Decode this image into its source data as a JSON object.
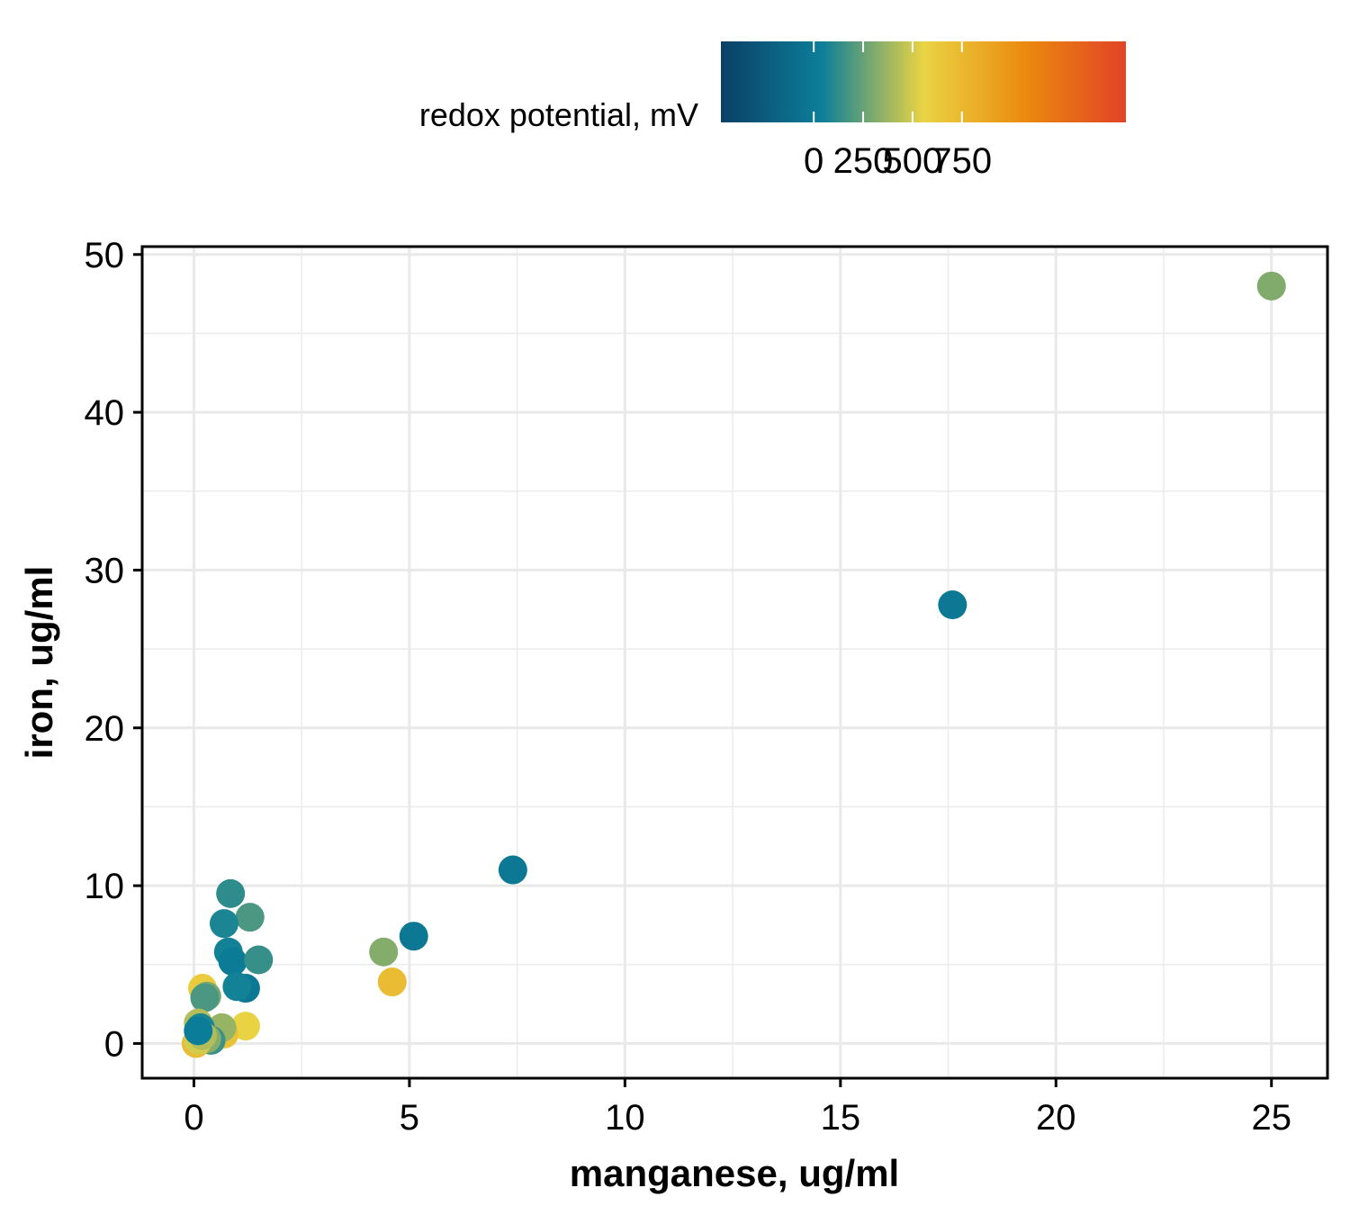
{
  "chart_data": {
    "type": "scatter",
    "xlabel": "manganese, ug/ml",
    "ylabel": "iron, ug/ml",
    "xlim": [
      -1.2,
      26.3
    ],
    "ylim": [
      -2.2,
      50.5
    ],
    "x_ticks": [
      0,
      5,
      10,
      15,
      20,
      25
    ],
    "y_ticks": [
      0,
      10,
      20,
      30,
      40,
      50
    ],
    "grid": true,
    "legend": {
      "title": "redox potential, mV",
      "placement": "top",
      "type": "colorbar",
      "range": [
        -470,
        1580
      ],
      "ticks": [
        0,
        250,
        500,
        750
      ],
      "colors": [
        "#0b3f66",
        "#0c7f99",
        "#ead444",
        "#eb8a0e",
        "#e14326"
      ]
    },
    "points": [
      {
        "x": 25.0,
        "y": 48.0,
        "c": 310
      },
      {
        "x": 17.6,
        "y": 27.8,
        "c": -10
      },
      {
        "x": 7.4,
        "y": 11.0,
        "c": -10
      },
      {
        "x": 5.1,
        "y": 6.8,
        "c": -10
      },
      {
        "x": 4.4,
        "y": 5.8,
        "c": 320
      },
      {
        "x": 4.6,
        "y": 3.9,
        "c": 720
      },
      {
        "x": 0.85,
        "y": 9.5,
        "c": 120
      },
      {
        "x": 1.3,
        "y": 8.0,
        "c": 190
      },
      {
        "x": 0.7,
        "y": 7.6,
        "c": 80
      },
      {
        "x": 0.8,
        "y": 5.8,
        "c": 60
      },
      {
        "x": 0.9,
        "y": 5.2,
        "c": 10
      },
      {
        "x": 1.5,
        "y": 5.3,
        "c": 140
      },
      {
        "x": 1.2,
        "y": 3.5,
        "c": -10
      },
      {
        "x": 1.0,
        "y": 3.6,
        "c": 60
      },
      {
        "x": 0.2,
        "y": 3.5,
        "c": 620
      },
      {
        "x": 0.3,
        "y": 3.0,
        "c": 290
      },
      {
        "x": 0.25,
        "y": 2.9,
        "c": 190
      },
      {
        "x": 1.2,
        "y": 1.1,
        "c": 560
      },
      {
        "x": 0.7,
        "y": 0.6,
        "c": 680
      },
      {
        "x": 0.65,
        "y": 1.0,
        "c": 360
      },
      {
        "x": 0.1,
        "y": 1.3,
        "c": 430
      },
      {
        "x": 0.15,
        "y": 1.0,
        "c": 80
      },
      {
        "x": 0.4,
        "y": 0.2,
        "c": 150
      },
      {
        "x": 0.3,
        "y": 0.3,
        "c": 320
      },
      {
        "x": 0.05,
        "y": 0.0,
        "c": 720
      },
      {
        "x": 0.1,
        "y": 0.2,
        "c": 500
      },
      {
        "x": 0.2,
        "y": 0.5,
        "c": 420
      },
      {
        "x": 0.1,
        "y": 0.8,
        "c": 30
      }
    ]
  }
}
